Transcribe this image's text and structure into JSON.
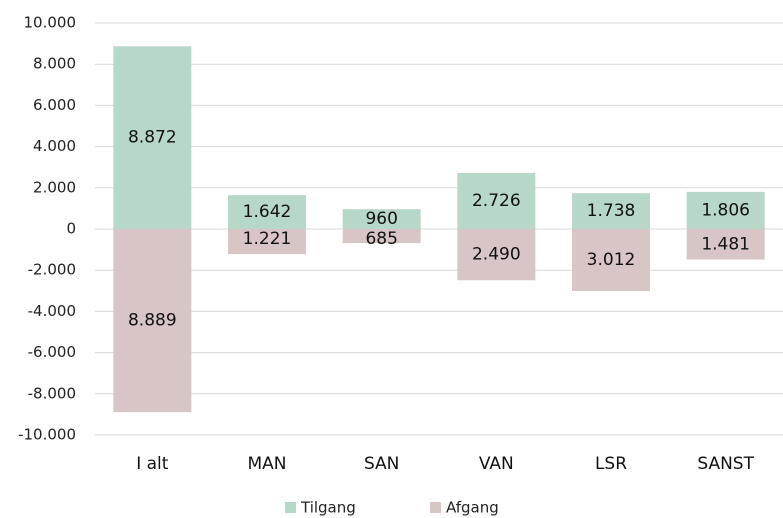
{
  "chart_data": {
    "type": "bar",
    "categories": [
      "I alt",
      "MAN",
      "SAN",
      "VAN",
      "LSR",
      "SANST"
    ],
    "series": [
      {
        "name": "Tilgang",
        "color": "#b7d7c9",
        "values": [
          8872,
          1642,
          960,
          2726,
          1738,
          1806
        ],
        "value_labels": [
          "8.872",
          "1.642",
          "960",
          "2.726",
          "1.738",
          "1.806"
        ]
      },
      {
        "name": "Afgang",
        "color": "#d8c6c6",
        "values": [
          -8889,
          -1221,
          -685,
          -2490,
          -3012,
          -1481
        ],
        "value_labels": [
          "8.889",
          "1.221",
          "685",
          "2.490",
          "3.012",
          "1.481"
        ]
      }
    ],
    "ylim": [
      -10000,
      10000
    ],
    "yticks": [
      {
        "value": -10000,
        "label": "-10.000"
      },
      {
        "value": -8000,
        "label": "-8.000"
      },
      {
        "value": -6000,
        "label": "-6.000"
      },
      {
        "value": -4000,
        "label": "-4.000"
      },
      {
        "value": -2000,
        "label": "-2.000"
      },
      0,
      {
        "value": 2000,
        "label": "2.000"
      },
      {
        "value": 4000,
        "label": "4.000"
      },
      {
        "value": 6000,
        "label": "6.000"
      },
      {
        "value": 8000,
        "label": "8.000"
      },
      {
        "value": 10000,
        "label": "10.000"
      }
    ],
    "grid": true,
    "legend": "bottom"
  }
}
